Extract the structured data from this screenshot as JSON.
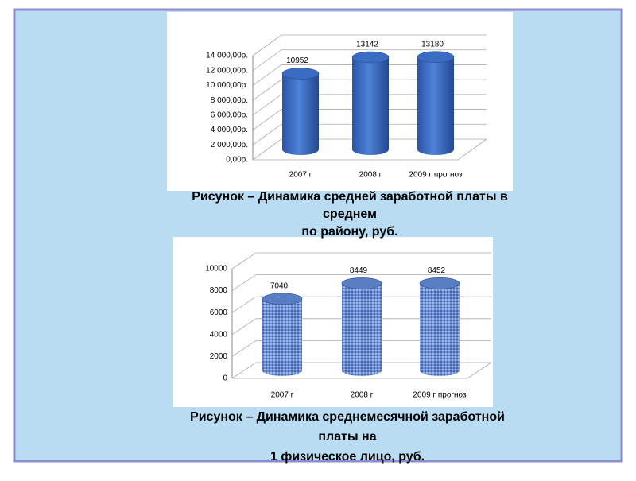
{
  "chart_data": [
    {
      "type": "bar",
      "categories": [
        "2007 г",
        "2008 г",
        "2009 г прогноз"
      ],
      "values": [
        10952,
        13142,
        13180
      ],
      "color": "#3b6cc4",
      "ylim": [
        0,
        14000
      ],
      "yticks": [
        {
          "value": 0,
          "label": "0,00р."
        },
        {
          "value": 2000,
          "label": "2 000,00р."
        },
        {
          "value": 4000,
          "label": "4 000,00р."
        },
        {
          "value": 6000,
          "label": "6 000,00р."
        },
        {
          "value": 8000,
          "label": "8 000,00р."
        },
        {
          "value": 10000,
          "label": "10 000,00р."
        },
        {
          "value": 12000,
          "label": "12 000,00р."
        },
        {
          "value": 14000,
          "label": "14 000,00р."
        }
      ],
      "grid": true
    },
    {
      "type": "bar",
      "categories": [
        "2007 г",
        "2008 г",
        "2009 г прогноз"
      ],
      "values": [
        7040,
        8449,
        8452
      ],
      "color": "#5a7ec4",
      "ylim": [
        0,
        10000
      ],
      "yticks": [
        0,
        2000,
        4000,
        6000,
        8000,
        10000
      ],
      "grid": true
    }
  ],
  "captions": [
    [
      "Рисунок – Динамика средней заработной платы в",
      "среднем",
      "по району, руб."
    ],
    [
      "Рисунок – Динамика среднемесячной заработной",
      "платы на",
      "1 физическое лицо, руб."
    ]
  ]
}
